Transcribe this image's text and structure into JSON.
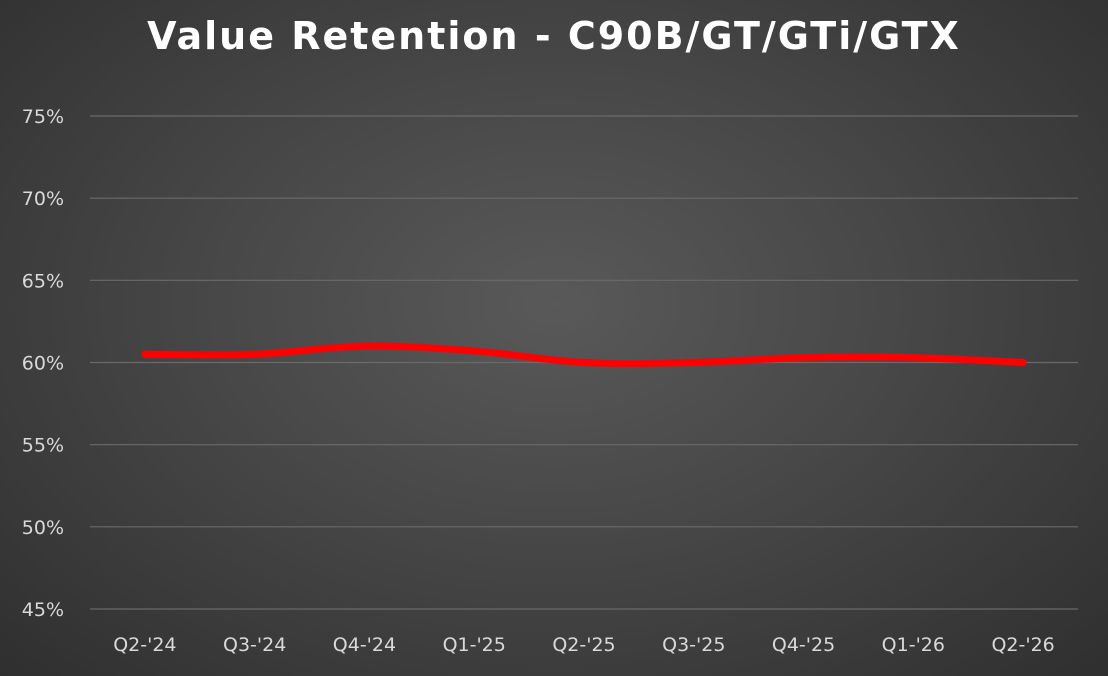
{
  "chart_data": {
    "type": "line",
    "title": "Value Retention - C90B/GT/GTi/GTX",
    "xlabel": "",
    "ylabel": "",
    "categories": [
      "Q2-'24",
      "Q3-'24",
      "Q4-'24",
      "Q1-'25",
      "Q2-'25",
      "Q3-'25",
      "Q4-'25",
      "Q1-'26",
      "Q2-'26"
    ],
    "series": [
      {
        "values": [
          60.5,
          60.5,
          61.0,
          60.7,
          60.0,
          60.0,
          60.3,
          60.3,
          60.0
        ],
        "color": "#ff0000"
      }
    ],
    "ylim": [
      45,
      75
    ],
    "yticks": [
      "45%",
      "50%",
      "55%",
      "60%",
      "65%",
      "70%",
      "75%"
    ],
    "grid": true,
    "legend": "none"
  },
  "colors": {
    "background": "#474747",
    "gridline": "#6a6a6a",
    "tick_text": "#d9d9d9",
    "title_text": "#ffffff",
    "series_line": "#ff0000"
  }
}
